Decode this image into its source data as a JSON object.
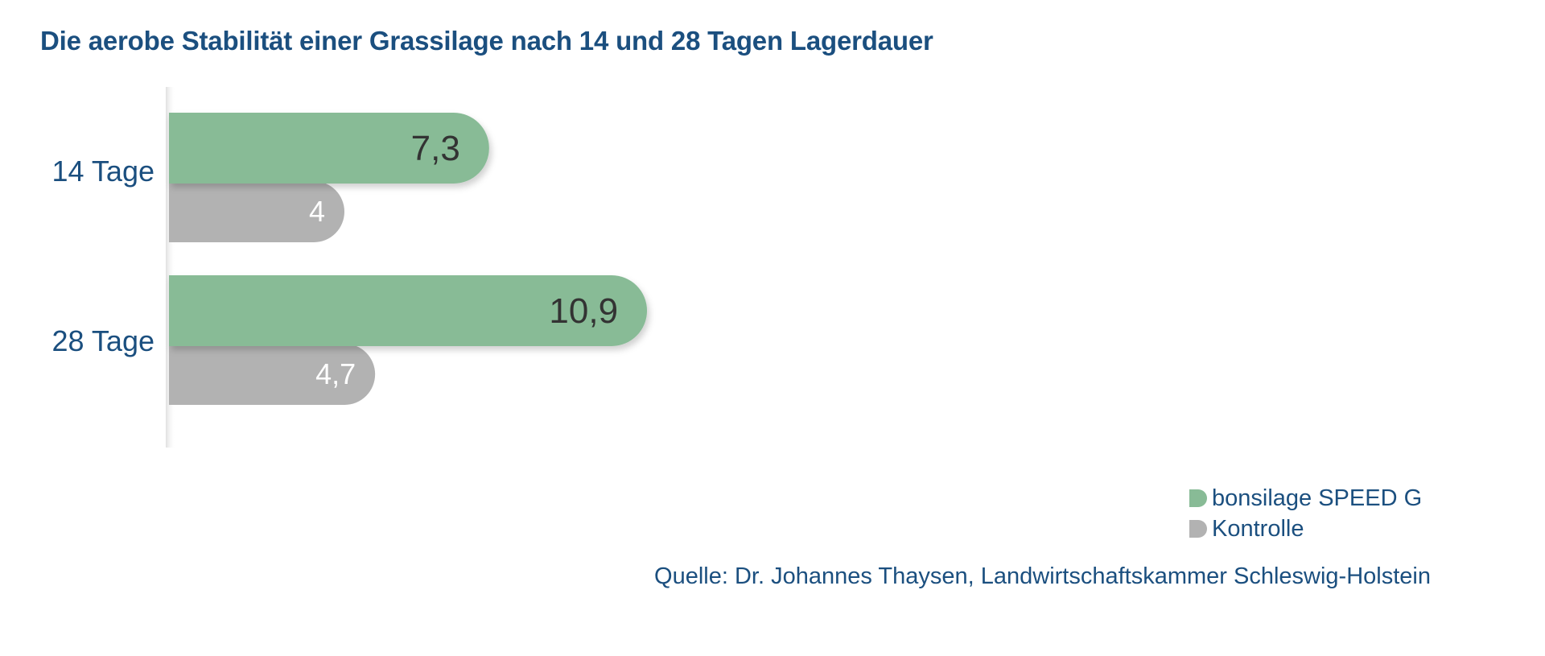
{
  "chart_data": {
    "type": "bar",
    "orientation": "horizontal",
    "title": "Die aerobe Stabilität einer Grassilage nach 14 und 28 Tagen Lagerdauer",
    "categories": [
      "14 Tage",
      "28 Tage"
    ],
    "series": [
      {
        "name": "bonsilage SPEED G",
        "values": [
          7.3,
          10.9
        ],
        "labels": [
          "7,3",
          "10,9"
        ],
        "color": "#88bb96"
      },
      {
        "name": "Kontrolle",
        "values": [
          4,
          4.7
        ],
        "labels": [
          "4",
          "4,7"
        ],
        "color": "#b2b2b2"
      }
    ],
    "xlim": [
      0,
      12
    ],
    "grid": false,
    "legend_position": "bottom-right",
    "source": "Quelle: Dr. Johannes Thaysen, Landwirtschaftskammer Schleswig-Holstein"
  }
}
